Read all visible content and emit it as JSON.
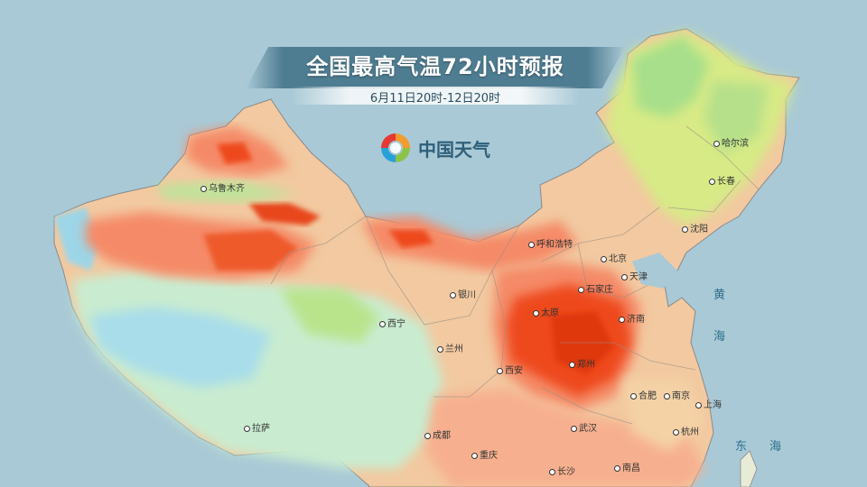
{
  "header": {
    "title": "全国最高气温72小时预报",
    "subtitle": "6月11日20时-12日20时"
  },
  "brand": {
    "logo_icon": "cma-weather-swirl-icon",
    "name": "中国天气"
  },
  "colors": {
    "ocean": "#a9c9d6",
    "very_hot": "#ee4a1e",
    "hot": "#f58a67",
    "warm": "#f7b08f",
    "mild": "#f4d2a6",
    "cool": "#a8df8a",
    "cold": "#9cd6e8",
    "accent_banner": "#34667e"
  },
  "cities": [
    "乌鲁木齐",
    "呼和浩特",
    "哈尔滨",
    "长春",
    "沈阳",
    "北京",
    "天津",
    "银川",
    "西宁",
    "兰州",
    "石家庄",
    "太原",
    "济南",
    "郑州",
    "西安",
    "合肥",
    "南京",
    "上海",
    "武汉",
    "成都",
    "重庆",
    "长沙",
    "南昌",
    "杭州",
    "拉萨"
  ],
  "seas": [
    "黄",
    "海",
    "东",
    "海"
  ]
}
